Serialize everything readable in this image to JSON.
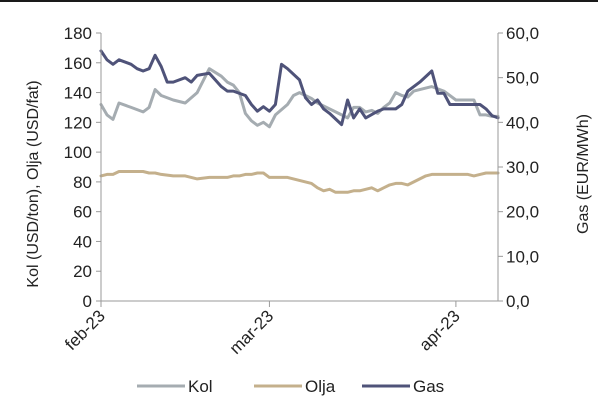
{
  "chart_data": {
    "type": "line",
    "title": "",
    "ylabel": "Kol (USD/ton), Olja (USD/fat)",
    "y2label": "Gas (EUR/MWh)",
    "ylim": [
      0,
      180
    ],
    "y2lim": [
      0,
      60
    ],
    "yticks": [
      "0",
      "20",
      "40",
      "60",
      "80",
      "100",
      "120",
      "140",
      "160",
      "180"
    ],
    "y2ticks": [
      "0,0",
      "10,0",
      "20,0",
      "30,0",
      "40,0",
      "50,0",
      "60,0"
    ],
    "xticks": [
      {
        "label": "feb-23",
        "date": "2023-02-01"
      },
      {
        "label": "mar-23",
        "date": "2023-03-01"
      },
      {
        "label": "apr-23",
        "date": "2023-04-01"
      }
    ],
    "xrange": [
      "2023-02-01",
      "2023-04-08"
    ],
    "grid": false,
    "legend_position": "bottom",
    "series": [
      {
        "name": "Kol",
        "axis": "left",
        "color": "#a5acb1",
        "points": [
          [
            "2023-02-01",
            132
          ],
          [
            "2023-02-02",
            125
          ],
          [
            "2023-02-03",
            122
          ],
          [
            "2023-02-04",
            133
          ],
          [
            "2023-02-06",
            130
          ],
          [
            "2023-02-08",
            127
          ],
          [
            "2023-02-09",
            130
          ],
          [
            "2023-02-10",
            142
          ],
          [
            "2023-02-11",
            138
          ],
          [
            "2023-02-13",
            135
          ],
          [
            "2023-02-15",
            133
          ],
          [
            "2023-02-17",
            140
          ],
          [
            "2023-02-19",
            156
          ],
          [
            "2023-02-21",
            151
          ],
          [
            "2023-02-22",
            147
          ],
          [
            "2023-02-23",
            145
          ],
          [
            "2023-02-24",
            140
          ],
          [
            "2023-02-25",
            126
          ],
          [
            "2023-02-26",
            121
          ],
          [
            "2023-02-27",
            118
          ],
          [
            "2023-02-28",
            120
          ],
          [
            "2023-03-01",
            117
          ],
          [
            "2023-03-02",
            125
          ],
          [
            "2023-03-04",
            132
          ],
          [
            "2023-03-05",
            138
          ],
          [
            "2023-03-06",
            140
          ],
          [
            "2023-03-08",
            136
          ],
          [
            "2023-03-09",
            133
          ],
          [
            "2023-03-10",
            131
          ],
          [
            "2023-03-12",
            127
          ],
          [
            "2023-03-14",
            123
          ],
          [
            "2023-03-15",
            130
          ],
          [
            "2023-03-16",
            130
          ],
          [
            "2023-03-17",
            127
          ],
          [
            "2023-03-18",
            128
          ],
          [
            "2023-03-19",
            126
          ],
          [
            "2023-03-20",
            130
          ],
          [
            "2023-03-21",
            133
          ],
          [
            "2023-03-22",
            140
          ],
          [
            "2023-03-23",
            138
          ],
          [
            "2023-03-24",
            137
          ],
          [
            "2023-03-25",
            141
          ],
          [
            "2023-03-27",
            143
          ],
          [
            "2023-03-28",
            144
          ],
          [
            "2023-03-30",
            141
          ],
          [
            "2023-04-01",
            135
          ],
          [
            "2023-04-03",
            135
          ],
          [
            "2023-04-04",
            135
          ],
          [
            "2023-04-05",
            125
          ],
          [
            "2023-04-06",
            125
          ],
          [
            "2023-04-07",
            124
          ],
          [
            "2023-04-08",
            124
          ]
        ]
      },
      {
        "name": "Olja",
        "axis": "left",
        "color": "#c4b08c",
        "points": [
          [
            "2023-02-01",
            84
          ],
          [
            "2023-02-02",
            85
          ],
          [
            "2023-02-03",
            85
          ],
          [
            "2023-02-04",
            87
          ],
          [
            "2023-02-06",
            87
          ],
          [
            "2023-02-08",
            87
          ],
          [
            "2023-02-09",
            86
          ],
          [
            "2023-02-10",
            86
          ],
          [
            "2023-02-11",
            85
          ],
          [
            "2023-02-13",
            84
          ],
          [
            "2023-02-15",
            84
          ],
          [
            "2023-02-17",
            82
          ],
          [
            "2023-02-19",
            83
          ],
          [
            "2023-02-21",
            83
          ],
          [
            "2023-02-22",
            83
          ],
          [
            "2023-02-23",
            84
          ],
          [
            "2023-02-24",
            84
          ],
          [
            "2023-02-25",
            85
          ],
          [
            "2023-02-26",
            85
          ],
          [
            "2023-02-27",
            86
          ],
          [
            "2023-02-28",
            86
          ],
          [
            "2023-03-01",
            83
          ],
          [
            "2023-03-02",
            83
          ],
          [
            "2023-03-04",
            83
          ],
          [
            "2023-03-05",
            82
          ],
          [
            "2023-03-06",
            81
          ],
          [
            "2023-03-08",
            79
          ],
          [
            "2023-03-09",
            76
          ],
          [
            "2023-03-10",
            74
          ],
          [
            "2023-03-11",
            75
          ],
          [
            "2023-03-12",
            73
          ],
          [
            "2023-03-14",
            73
          ],
          [
            "2023-03-15",
            74
          ],
          [
            "2023-03-16",
            74
          ],
          [
            "2023-03-17",
            75
          ],
          [
            "2023-03-18",
            76
          ],
          [
            "2023-03-19",
            74
          ],
          [
            "2023-03-20",
            76
          ],
          [
            "2023-03-21",
            78
          ],
          [
            "2023-03-22",
            79
          ],
          [
            "2023-03-23",
            79
          ],
          [
            "2023-03-24",
            78
          ],
          [
            "2023-03-25",
            80
          ],
          [
            "2023-03-27",
            84
          ],
          [
            "2023-03-28",
            85
          ],
          [
            "2023-03-30",
            85
          ],
          [
            "2023-04-01",
            85
          ],
          [
            "2023-04-03",
            85
          ],
          [
            "2023-04-04",
            84
          ],
          [
            "2023-04-05",
            85
          ],
          [
            "2023-04-06",
            86
          ],
          [
            "2023-04-07",
            86
          ],
          [
            "2023-04-08",
            86
          ]
        ]
      },
      {
        "name": "Gas",
        "axis": "right",
        "color": "#4f5379",
        "points": [
          [
            "2023-02-01",
            56
          ],
          [
            "2023-02-02",
            54
          ],
          [
            "2023-02-03",
            53
          ],
          [
            "2023-02-04",
            54
          ],
          [
            "2023-02-06",
            53
          ],
          [
            "2023-02-07",
            52
          ],
          [
            "2023-02-08",
            51.5
          ],
          [
            "2023-02-09",
            52
          ],
          [
            "2023-02-10",
            55
          ],
          [
            "2023-02-11",
            52.5
          ],
          [
            "2023-02-12",
            49
          ],
          [
            "2023-02-13",
            49
          ],
          [
            "2023-02-15",
            50
          ],
          [
            "2023-02-16",
            49
          ],
          [
            "2023-02-17",
            50.5
          ],
          [
            "2023-02-19",
            51
          ],
          [
            "2023-02-20",
            49.5
          ],
          [
            "2023-02-21",
            48
          ],
          [
            "2023-02-22",
            47
          ],
          [
            "2023-02-23",
            47
          ],
          [
            "2023-02-25",
            46
          ],
          [
            "2023-02-26",
            44
          ],
          [
            "2023-02-27",
            42.5
          ],
          [
            "2023-02-28",
            43.5
          ],
          [
            "2023-03-01",
            42.5
          ],
          [
            "2023-03-02",
            44
          ],
          [
            "2023-03-03",
            53
          ],
          [
            "2023-03-04",
            52
          ],
          [
            "2023-03-06",
            49.5
          ],
          [
            "2023-03-07",
            45.5
          ],
          [
            "2023-03-08",
            44
          ],
          [
            "2023-03-09",
            45
          ],
          [
            "2023-03-10",
            43
          ],
          [
            "2023-03-11",
            42
          ],
          [
            "2023-03-13",
            39.5
          ],
          [
            "2023-03-14",
            45
          ],
          [
            "2023-03-15",
            41
          ],
          [
            "2023-03-16",
            43
          ],
          [
            "2023-03-17",
            41
          ],
          [
            "2023-03-19",
            42.5
          ],
          [
            "2023-03-20",
            43
          ],
          [
            "2023-03-22",
            43
          ],
          [
            "2023-03-23",
            44
          ],
          [
            "2023-03-24",
            47
          ],
          [
            "2023-03-26",
            49
          ],
          [
            "2023-03-28",
            51.5
          ],
          [
            "2023-03-29",
            46.5
          ],
          [
            "2023-03-30",
            46.5
          ],
          [
            "2023-03-31",
            44
          ],
          [
            "2023-04-01",
            44
          ],
          [
            "2023-04-03",
            44
          ],
          [
            "2023-04-04",
            44
          ],
          [
            "2023-04-05",
            44
          ],
          [
            "2023-04-06",
            43
          ],
          [
            "2023-04-07",
            41.5
          ],
          [
            "2023-04-08",
            41
          ]
        ]
      }
    ]
  }
}
